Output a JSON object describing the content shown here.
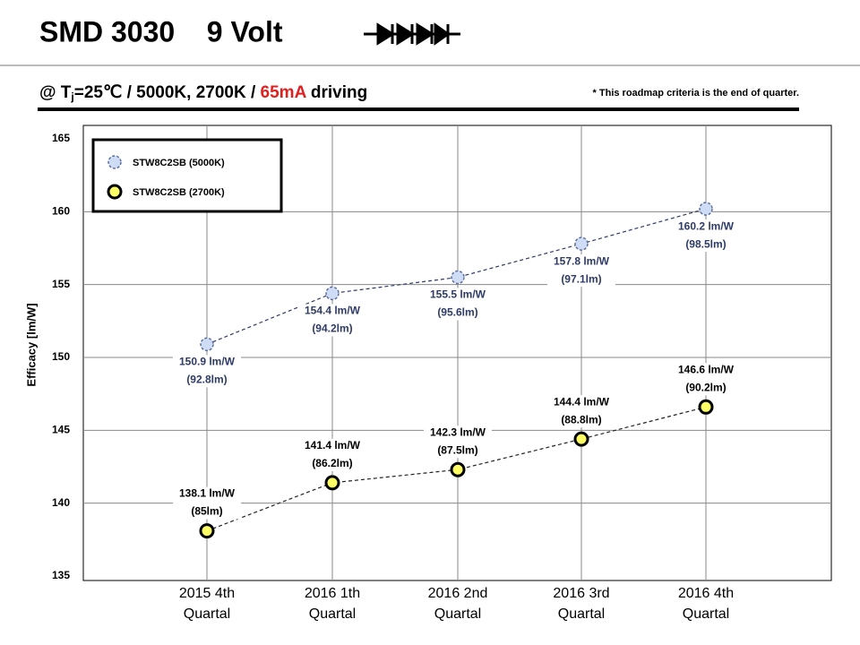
{
  "header": {
    "title": "SMD 3030    9 Volt",
    "subtitle": [
      "@ T",
      "j",
      "=25℃ / 5000K, 2700K / ",
      "65mA",
      " driving"
    ],
    "note": "* This roadmap criteria is the end of quarter."
  },
  "chart_data": {
    "type": "line",
    "y_label": "Efficacy [lm/W]",
    "categories": [
      "2015 4th\nQuartal",
      "2016 1th\nQuartal",
      "2016 2nd\nQuartal",
      "2016 3rd\nQuartal",
      "2016 4th\nQuartal"
    ],
    "ylim": [
      135,
      165
    ],
    "yticks": [
      135,
      140,
      145,
      150,
      155,
      160,
      165
    ],
    "grid": true,
    "legend": "top-left",
    "series": [
      {
        "name": "STW8C2SB (5000K)",
        "color": "#cfdcf5",
        "values": [
          150.9,
          154.4,
          155.5,
          157.8,
          160.2
        ],
        "value_labels": [
          "150.9 lm/W",
          "154.4 lm/W",
          "155.5 lm/W",
          "157.8 lm/W",
          "160.2 lm/W"
        ],
        "flux_labels": [
          "(92.8lm)",
          "(94.2lm)",
          "(95.6lm)",
          "(97.1lm)",
          "(98.5lm)"
        ]
      },
      {
        "name": "STW8C2SB (2700K)",
        "color": "#ffff66",
        "values": [
          138.1,
          141.4,
          142.3,
          144.4,
          146.6
        ],
        "value_labels": [
          "138.1 lm/W",
          "141.4 lm/W",
          "142.3 lm/W",
          "144.4 lm/W",
          "146.6 lm/W"
        ],
        "flux_labels": [
          "(85lm)",
          "(86.2lm)",
          "(87.5lm)",
          "(88.8lm)",
          "(90.2lm)"
        ]
      }
    ]
  }
}
